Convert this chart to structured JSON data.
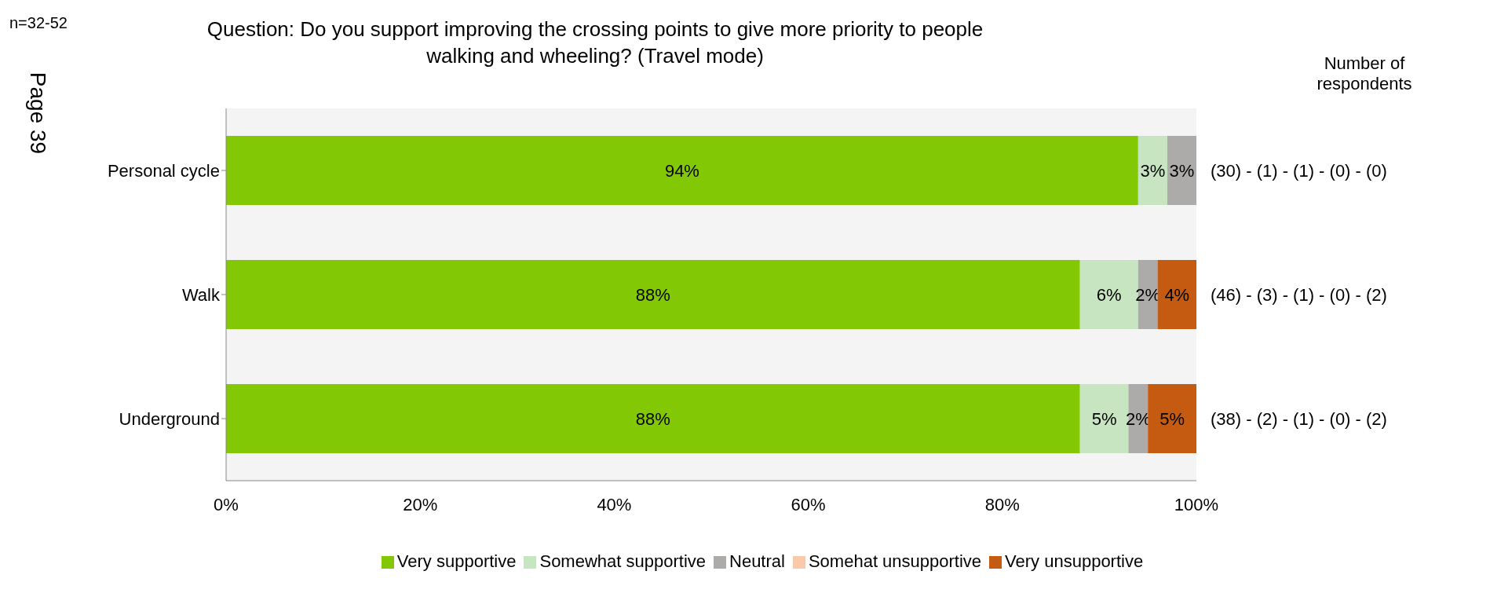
{
  "chart_data": {
    "type": "bar",
    "orientation": "horizontal",
    "stacked": true,
    "title": "Question: Do you support improving the crossing points to give more priority to people walking and wheeling? (Travel mode)",
    "categories": [
      "Personal cycle",
      "Walk",
      "Underground"
    ],
    "series": [
      {
        "name": "Very supportive",
        "color": "#82c805",
        "values": [
          94,
          88,
          88
        ],
        "value_labels": [
          "94%",
          "88%",
          "88%"
        ]
      },
      {
        "name": "Somewhat supportive",
        "color": "#c6e5c0",
        "values": [
          3,
          6,
          5
        ],
        "value_labels": [
          "3%",
          "6%",
          "5%"
        ]
      },
      {
        "name": "Neutral",
        "color": "#adaaaa",
        "values": [
          3,
          2,
          2
        ],
        "value_labels": [
          "3%",
          "2%",
          "2%"
        ]
      },
      {
        "name": "Somehat unsupportive",
        "color": "#f9c9a9",
        "values": [
          0,
          0,
          0
        ],
        "value_labels": [
          null,
          null,
          null
        ]
      },
      {
        "name": "Very unsupportive",
        "color": "#c55a11",
        "values": [
          0,
          4,
          5
        ],
        "value_labels": [
          null,
          "4%",
          "5%"
        ]
      }
    ],
    "xlim": [
      0,
      100
    ],
    "xticks": [
      {
        "value": 0,
        "label": "0%"
      },
      {
        "value": 20,
        "label": "20%"
      },
      {
        "value": 40,
        "label": "40%"
      },
      {
        "value": 60,
        "label": "60%"
      },
      {
        "value": 80,
        "label": "80%"
      },
      {
        "value": 100,
        "label": "100%"
      }
    ],
    "grid": false,
    "legend": "bottom",
    "annotations": [
      "n=32-52",
      "Page 39",
      "Number of respondents",
      "(30) - (1) - (1) - (0) - (0)",
      "(46) - (3) - (1) - (0) - (2)",
      "(38) - (2) - (1) - (0) - (2)"
    ]
  }
}
